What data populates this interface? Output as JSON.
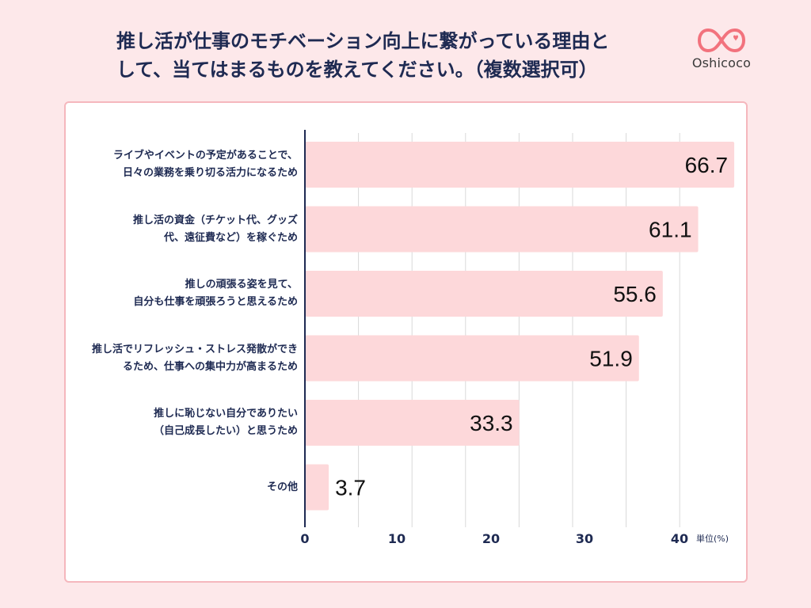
{
  "header": {
    "title_line1": "推し活が仕事のモチベーション向上に繋がっている理由と",
    "title_line2": "して、当てはまるものを教えてください。（複数選択可）",
    "logo_text": "Oshicoco",
    "logo_color": "#f2727d"
  },
  "unit_label": "単位(%)",
  "chart_data": {
    "type": "bar",
    "orientation": "horizontal",
    "categories": [
      [
        "ライブやイベントの予定があることで、",
        "日々の業務を乗り切る活力になるため"
      ],
      [
        "推し活の資金（チケット代、グッズ",
        "代、遠征費など）を稼ぐため"
      ],
      [
        "推しの頑張る姿を見て、",
        "自分も仕事を頑張ろうと思えるため"
      ],
      [
        "推し活でリフレッシュ・ストレス発散ができ",
        "るため、仕事への集中力が高まるため"
      ],
      [
        "推しに恥じない自分でありたい",
        "（自己成長したい）と思うため"
      ],
      [
        "その他"
      ]
    ],
    "values": [
      66.7,
      61.1,
      55.6,
      51.9,
      33.3,
      3.7
    ],
    "value_labels": [
      "66.7",
      "61.1",
      "55.6",
      "51.9",
      "33.3",
      "3.7"
    ],
    "x_ticks": [
      0,
      10,
      20,
      30,
      40
    ],
    "xlim": [
      0,
      70
    ],
    "bar_color": "#fdd8da",
    "grid": true,
    "legend": "none"
  }
}
